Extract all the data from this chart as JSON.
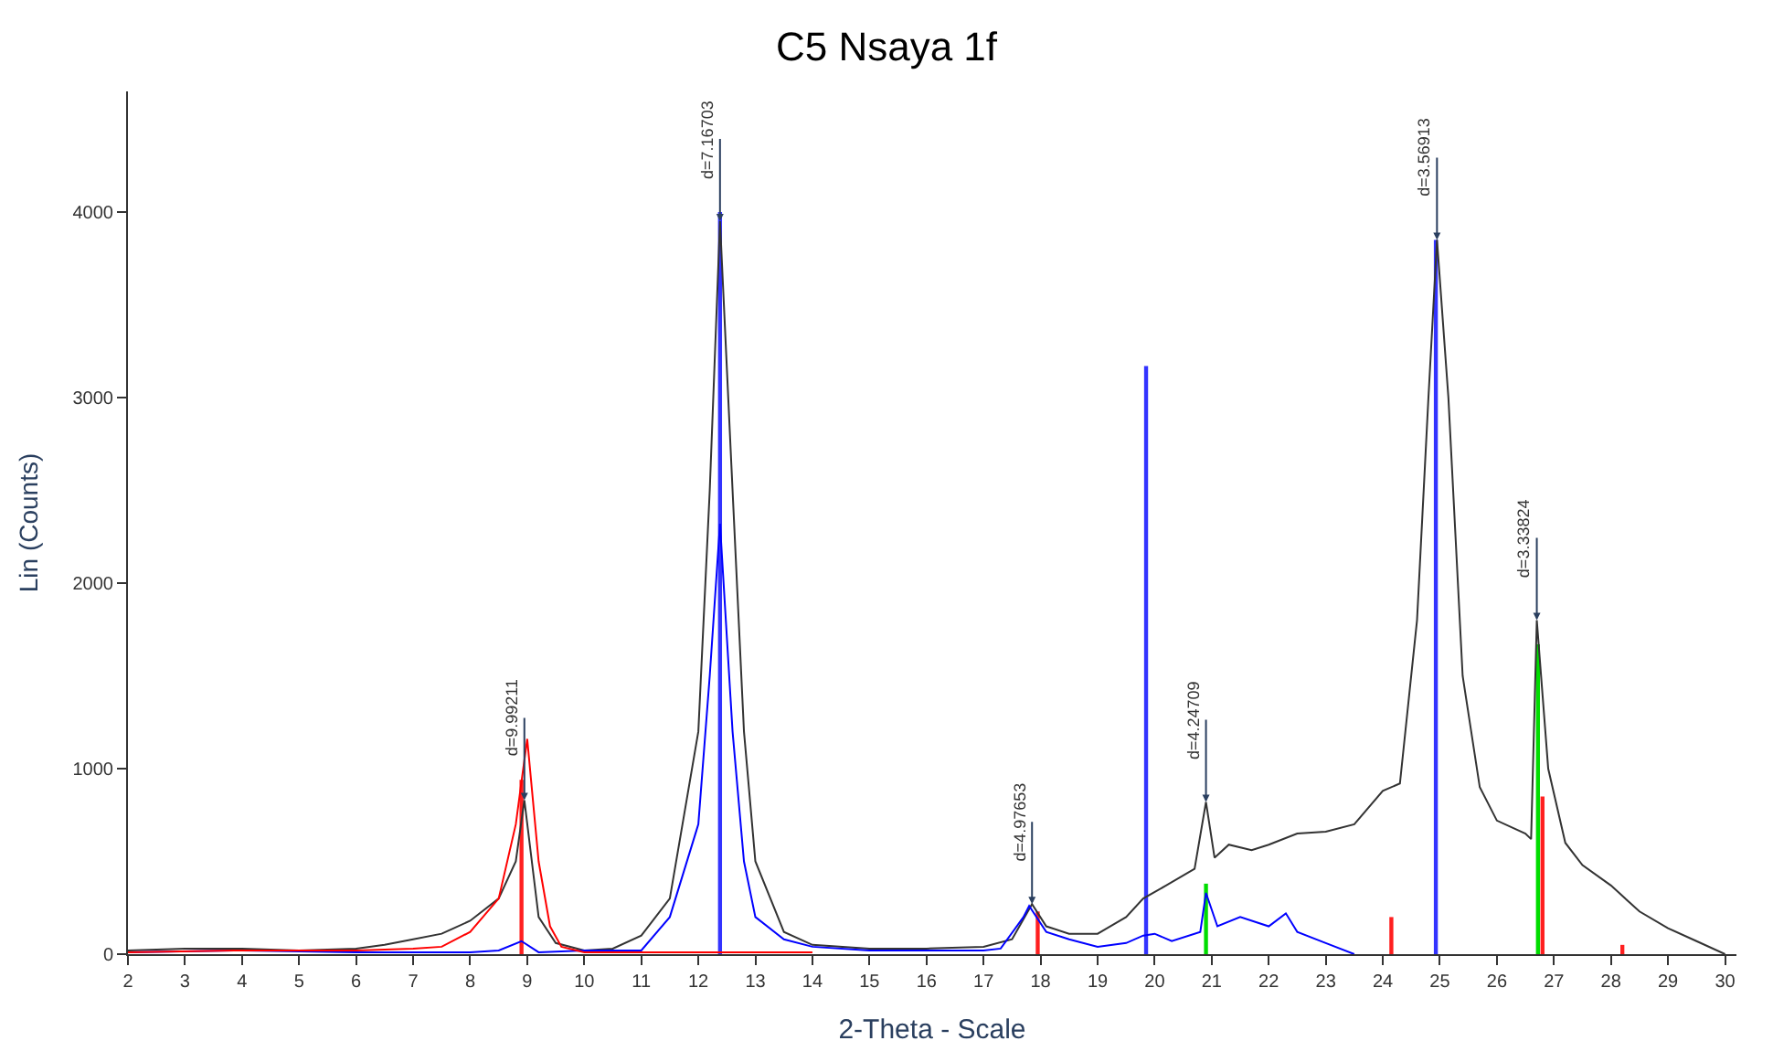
{
  "chart_data": {
    "type": "line",
    "title": "C5 Nsaya 1f",
    "xlabel": "2-Theta - Scale",
    "ylabel": "Lin (Counts)",
    "xlim": [
      2,
      30.2
    ],
    "xticks": [
      2,
      3,
      4,
      5,
      6,
      7,
      8,
      9,
      10,
      11,
      12,
      13,
      14,
      15,
      16,
      17,
      18,
      19,
      20,
      21,
      22,
      23,
      24,
      25,
      26,
      27,
      28,
      29,
      30
    ],
    "ylim": [
      0,
      4650
    ],
    "yticks": [
      0,
      1000,
      2000,
      3000,
      4000
    ],
    "marker": "none",
    "line_style": "solid",
    "series": [
      {
        "color": "#333333",
        "x": [
          2,
          3,
          4,
          5,
          6,
          6.5,
          7,
          7.5,
          8,
          8.5,
          8.8,
          8.95,
          9.2,
          9.5,
          10,
          10.5,
          11,
          11.5,
          12,
          12.2,
          12.38,
          12.6,
          12.8,
          13,
          13.5,
          14,
          15,
          16,
          17,
          17.5,
          17.85,
          18.1,
          18.5,
          19,
          19.5,
          19.8,
          20.2,
          20.7,
          20.9,
          21.05,
          21.3,
          21.7,
          22,
          22.5,
          23,
          23.5,
          24,
          24.3,
          24.6,
          24.8,
          24.95,
          25.15,
          25.4,
          25.7,
          26,
          26.5,
          26.6,
          26.7,
          26.9,
          27.2,
          27.5,
          28,
          28.5,
          29,
          29.5,
          30
        ],
        "values": [
          20,
          30,
          30,
          20,
          30,
          50,
          80,
          110,
          180,
          300,
          500,
          830,
          200,
          60,
          20,
          30,
          100,
          300,
          1200,
          2500,
          3950,
          2500,
          1200,
          500,
          120,
          50,
          30,
          30,
          40,
          80,
          270,
          150,
          110,
          110,
          200,
          300,
          370,
          460,
          820,
          520,
          590,
          560,
          590,
          650,
          660,
          700,
          880,
          920,
          1800,
          3000,
          3850,
          3000,
          1500,
          900,
          720,
          650,
          620,
          1800,
          1000,
          600,
          480,
          370,
          230,
          140,
          70,
          0
        ]
      },
      {
        "color": "#0000ff",
        "x": [
          2,
          4,
          6,
          8,
          8.5,
          8.9,
          9.2,
          10,
          11,
          11.5,
          12,
          12.2,
          12.38,
          12.6,
          12.8,
          13,
          13.5,
          14,
          15,
          17,
          17.3,
          17.7,
          17.8,
          18.1,
          18.5,
          19,
          19.5,
          19.8,
          20,
          20.3,
          20.8,
          20.9,
          21.1,
          21.5,
          22,
          22.3,
          22.5,
          23,
          23.5
        ],
        "values": [
          10,
          20,
          10,
          10,
          20,
          70,
          10,
          20,
          20,
          200,
          700,
          1500,
          2320,
          1200,
          500,
          200,
          80,
          40,
          20,
          20,
          30,
          200,
          260,
          120,
          80,
          40,
          60,
          100,
          110,
          70,
          120,
          330,
          150,
          200,
          150,
          220,
          120,
          60,
          0
        ]
      },
      {
        "color": "#ff0000",
        "x": [
          2,
          4,
          6,
          7,
          7.5,
          8,
          8.5,
          8.8,
          9,
          9.2,
          9.4,
          9.6,
          10,
          12,
          14
        ],
        "values": [
          10,
          20,
          20,
          30,
          40,
          120,
          300,
          700,
          1160,
          500,
          150,
          40,
          10,
          10,
          10
        ]
      },
      {
        "type": "bar",
        "color": "#ff2020",
        "x": [
          8.9,
          17.95,
          24.15,
          26.8,
          28.2
        ],
        "values": [
          940,
          230,
          200,
          850,
          50
        ]
      },
      {
        "type": "bar",
        "color": "#3333ff",
        "x": [
          12.38,
          19.85,
          24.93
        ],
        "values": [
          4000,
          3170,
          3850
        ]
      },
      {
        "type": "bar",
        "color": "#00dd00",
        "x": [
          20.9,
          26.72
        ],
        "values": [
          380,
          1670
        ]
      }
    ],
    "annotations": [
      {
        "text": "d=9.99211",
        "x": 8.95,
        "y": 830
      },
      {
        "text": "d=7.16703",
        "x": 12.38,
        "y": 3950
      },
      {
        "text": "d=4.97653",
        "x": 17.85,
        "y": 270
      },
      {
        "text": "d=4.24709",
        "x": 20.9,
        "y": 820
      },
      {
        "text": "d=3.56913",
        "x": 24.95,
        "y": 3850
      },
      {
        "text": "d=3.33824",
        "x": 26.7,
        "y": 1800
      }
    ]
  }
}
